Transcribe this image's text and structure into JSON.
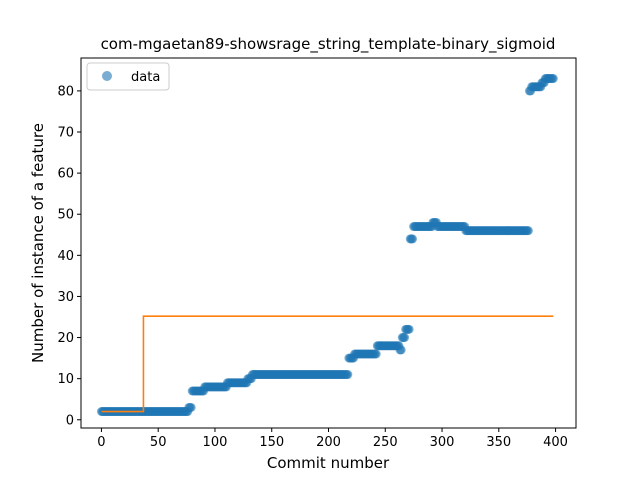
{
  "chart_data": {
    "type": "scatter",
    "title": "com-mgaetan89-showsrage_string_template-binary_sigmoid",
    "xlabel": "Commit number",
    "ylabel": "Number of instance of a feature",
    "xlim": [
      -18,
      418
    ],
    "ylim": [
      -2,
      88
    ],
    "xticks": [
      0,
      50,
      100,
      150,
      200,
      250,
      300,
      350,
      400
    ],
    "yticks": [
      0,
      10,
      20,
      30,
      40,
      50,
      60,
      70,
      80
    ],
    "grid": false,
    "legend": {
      "placement": "top-left",
      "entries": [
        "data"
      ]
    },
    "colors": {
      "data": "#1f77b4",
      "fit": "#ff7f0e"
    },
    "scatter_segments": [
      {
        "x_start": 0,
        "x_end": 76,
        "y": 2
      },
      {
        "x_start": 77,
        "x_end": 79,
        "y": 3
      },
      {
        "x_start": 80,
        "x_end": 90,
        "y": 7
      },
      {
        "x_start": 91,
        "x_end": 110,
        "y": 8
      },
      {
        "x_start": 111,
        "x_end": 128,
        "y": 9
      },
      {
        "x_start": 129,
        "x_end": 132,
        "y": 10
      },
      {
        "x_start": 133,
        "x_end": 217,
        "y": 11
      },
      {
        "x_start": 218,
        "x_end": 222,
        "y": 15
      },
      {
        "x_start": 223,
        "x_end": 242,
        "y": 16
      },
      {
        "x_start": 243,
        "x_end": 262,
        "y": 18
      },
      {
        "x_start": 263,
        "x_end": 264,
        "y": 17
      },
      {
        "x_start": 265,
        "x_end": 267,
        "y": 20
      },
      {
        "x_start": 268,
        "x_end": 271,
        "y": 22
      },
      {
        "x_start": 272,
        "x_end": 274,
        "y": 44
      },
      {
        "x_start": 275,
        "x_end": 291,
        "y": 47
      },
      {
        "x_start": 292,
        "x_end": 295,
        "y": 48
      },
      {
        "x_start": 296,
        "x_end": 320,
        "y": 47
      },
      {
        "x_start": 321,
        "x_end": 376,
        "y": 46
      },
      {
        "x_start": 377,
        "x_end": 378,
        "y": 80
      },
      {
        "x_start": 379,
        "x_end": 387,
        "y": 81
      },
      {
        "x_start": 388,
        "x_end": 390,
        "y": 82
      },
      {
        "x_start": 391,
        "x_end": 398,
        "y": 83
      }
    ],
    "fit_line": {
      "x": [
        0,
        37,
        37,
        398
      ],
      "y": [
        2,
        2,
        25.2,
        25.2
      ]
    }
  }
}
